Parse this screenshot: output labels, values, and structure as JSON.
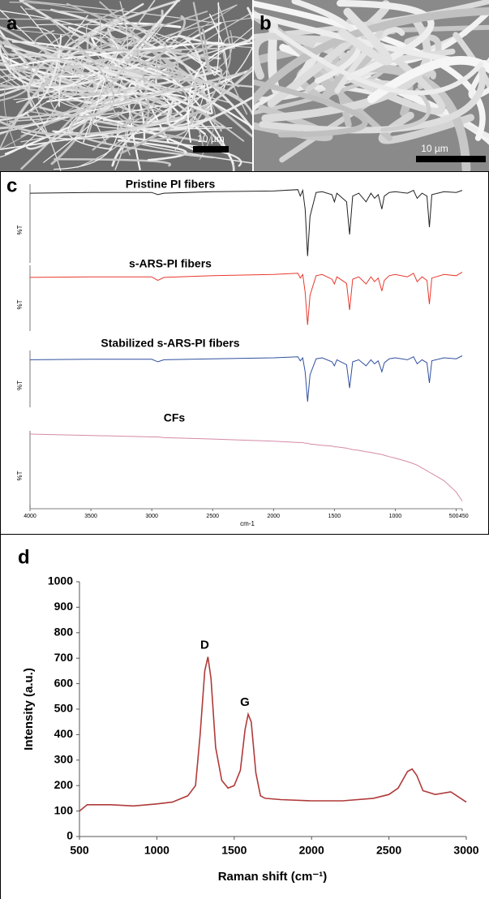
{
  "panels": {
    "a": {
      "label": "a",
      "scale_bar": "10 µm"
    },
    "b": {
      "label": "b",
      "scale_bar": "10 µm"
    },
    "c": {
      "label": "c"
    },
    "d": {
      "label": "d"
    }
  },
  "chart_data": [
    {
      "type": "line",
      "xlabel": "cm-1",
      "ylabel": "%T",
      "xlim": [
        4000,
        450
      ],
      "xticks": [
        4000,
        3500,
        3000,
        2500,
        2000,
        1500,
        1000,
        500,
        450
      ],
      "ylim": [
        0,
        100
      ],
      "x": [
        4000,
        3500,
        3000,
        2950,
        2900,
        2500,
        2000,
        1800,
        1780,
        1760,
        1740,
        1720,
        1700,
        1650,
        1600,
        1520,
        1500,
        1480,
        1400,
        1375,
        1350,
        1300,
        1240,
        1200,
        1170,
        1140,
        1110,
        1090,
        1050,
        1000,
        900,
        850,
        820,
        780,
        740,
        720,
        700,
        600,
        500,
        450
      ],
      "series": [
        {
          "name": "Pristine PI fibers",
          "color": "#222222",
          "values": [
            92,
            93,
            93,
            90,
            92,
            94,
            95,
            97,
            88,
            96,
            70,
            5,
            60,
            93,
            94,
            90,
            80,
            92,
            80,
            35,
            88,
            92,
            80,
            92,
            85,
            90,
            70,
            88,
            93,
            94,
            92,
            96,
            85,
            92,
            88,
            45,
            90,
            94,
            93,
            96
          ]
        },
        {
          "name": "s-ARS-PI fibers",
          "color": "#e8392e",
          "values": [
            85,
            86,
            86,
            80,
            85,
            88,
            90,
            92,
            84,
            90,
            60,
            5,
            55,
            88,
            90,
            82,
            74,
            86,
            75,
            30,
            82,
            86,
            74,
            86,
            78,
            84,
            62,
            80,
            88,
            90,
            86,
            92,
            78,
            86,
            80,
            40,
            84,
            90,
            88,
            94
          ]
        },
        {
          "name": "Stabilized s-ARS-PI fibers",
          "color": "#2f4f9e",
          "values": [
            88,
            89,
            89,
            84,
            88,
            90,
            92,
            94,
            86,
            92,
            64,
            5,
            58,
            90,
            92,
            84,
            76,
            88,
            78,
            32,
            84,
            88,
            76,
            88,
            80,
            86,
            64,
            82,
            90,
            92,
            88,
            94,
            80,
            88,
            82,
            42,
            86,
            92,
            90,
            96
          ]
        },
        {
          "name": "CFs",
          "color": "#d48aa8",
          "values": [
            100,
            98,
            96,
            96,
            95,
            93,
            90,
            88,
            88,
            88,
            87,
            87,
            86,
            85,
            84,
            83,
            82,
            82,
            80,
            79,
            78,
            77,
            75,
            74,
            73,
            72,
            71,
            70,
            68,
            66,
            61,
            58,
            56,
            52,
            48,
            46,
            44,
            34,
            18,
            5
          ]
        }
      ]
    },
    {
      "type": "line",
      "xlabel": "Raman shift (cm⁻¹)",
      "ylabel": "Intensity (a.u.)",
      "xlim": [
        500,
        3000
      ],
      "xticks": [
        500,
        1000,
        1500,
        2000,
        2500,
        3000
      ],
      "ylim": [
        0,
        1000
      ],
      "yticks": [
        0,
        100,
        200,
        300,
        400,
        500,
        600,
        700,
        800,
        900,
        1000
      ],
      "x": [
        500,
        550,
        700,
        850,
        1000,
        1100,
        1200,
        1250,
        1280,
        1310,
        1330,
        1350,
        1380,
        1420,
        1460,
        1500,
        1540,
        1570,
        1590,
        1610,
        1640,
        1670,
        1700,
        1800,
        2000,
        2200,
        2400,
        2500,
        2560,
        2620,
        2650,
        2680,
        2720,
        2800,
        2900,
        3000
      ],
      "series": [
        {
          "color": "#b03a3a",
          "values": [
            100,
            125,
            125,
            120,
            128,
            135,
            160,
            200,
            400,
            650,
            705,
            620,
            350,
            220,
            190,
            200,
            260,
            420,
            480,
            450,
            250,
            160,
            150,
            145,
            140,
            140,
            150,
            165,
            190,
            255,
            265,
            240,
            180,
            165,
            175,
            135
          ]
        }
      ],
      "annotations": [
        {
          "text": "D",
          "x": 1330,
          "y": 705
        },
        {
          "text": "G",
          "x": 1590,
          "y": 480
        }
      ]
    }
  ]
}
